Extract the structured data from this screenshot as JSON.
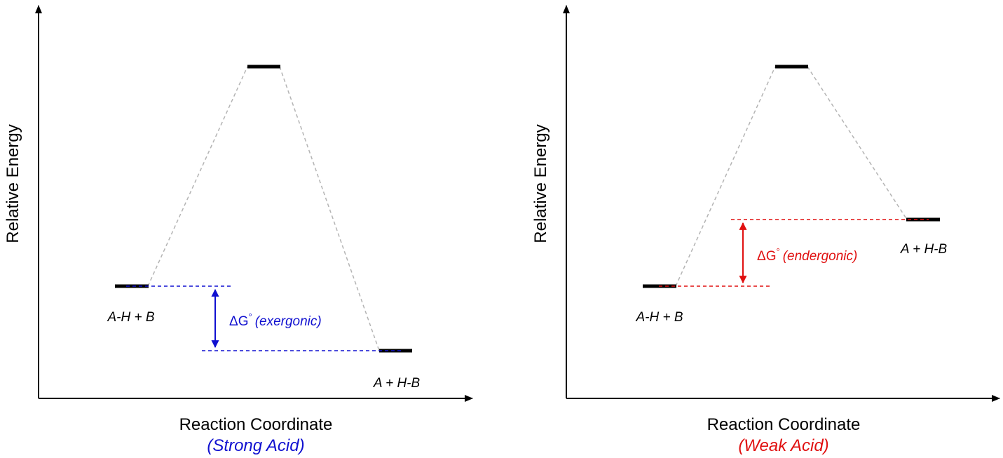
{
  "colors": {
    "axis": "#000000",
    "energy_level": "#000000",
    "connector": "#b4b4b4",
    "strong": "#1010d0",
    "weak": "#e01010"
  },
  "panels": [
    {
      "ylabel": "Relative Energy",
      "xlabel": "Reaction Coordinate",
      "caption": "(Strong Acid)",
      "reactants": "A-H + B",
      "products": "A + H-B",
      "delta_g_symbol": "ΔG",
      "delta_g_degree": "°",
      "delta_g_note": "(exergonic)"
    },
    {
      "ylabel": "Relative Energy",
      "xlabel": "Reaction Coordinate",
      "caption": "(Weak Acid)",
      "reactants": "A-H + B",
      "products": "A + H-B",
      "delta_g_symbol": "ΔG",
      "delta_g_degree": "°",
      "delta_g_note": "(endergonic)"
    }
  ]
}
